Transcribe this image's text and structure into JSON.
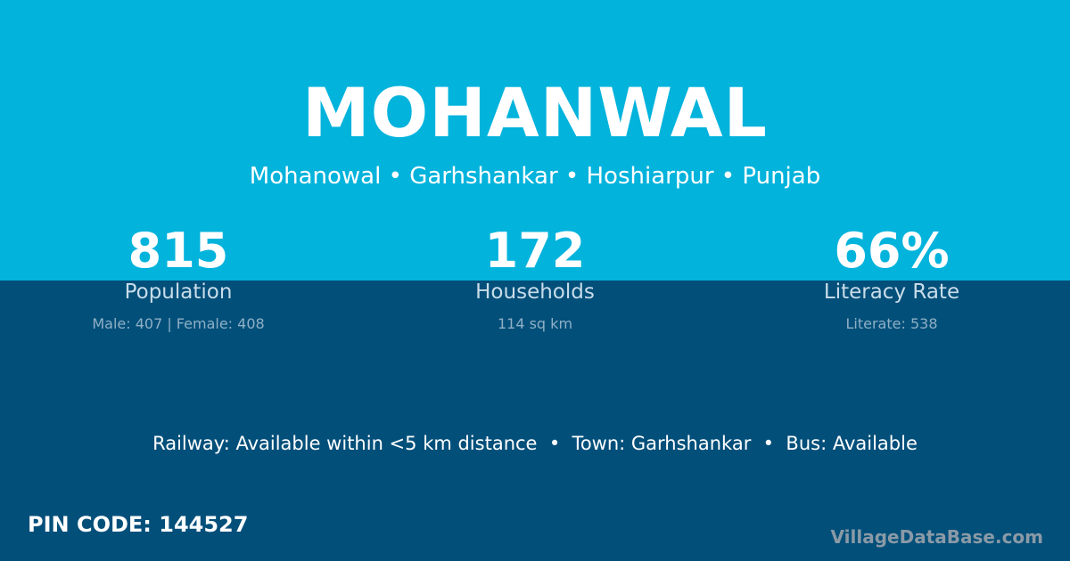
{
  "header": {
    "title": "MOHANWAL",
    "subtitle": "Mohanowal • Garhshankar • Hoshiarpur • Punjab"
  },
  "stats": [
    {
      "value": "815",
      "label": "Population",
      "detail": "Male: 407 | Female: 408"
    },
    {
      "value": "172",
      "label": "Households",
      "detail": "114 sq km"
    },
    {
      "value": "66%",
      "label": "Literacy Rate",
      "detail": "Literate: 538"
    }
  ],
  "facts": "Railway: Available within <5 km distance  •  Town: Garhshankar  •  Bus: Available",
  "pin": "PIN CODE: 144527",
  "brand": "VillageDataBase.com",
  "colors": {
    "top": "#02b3dc",
    "bottom": "#024f7a"
  }
}
